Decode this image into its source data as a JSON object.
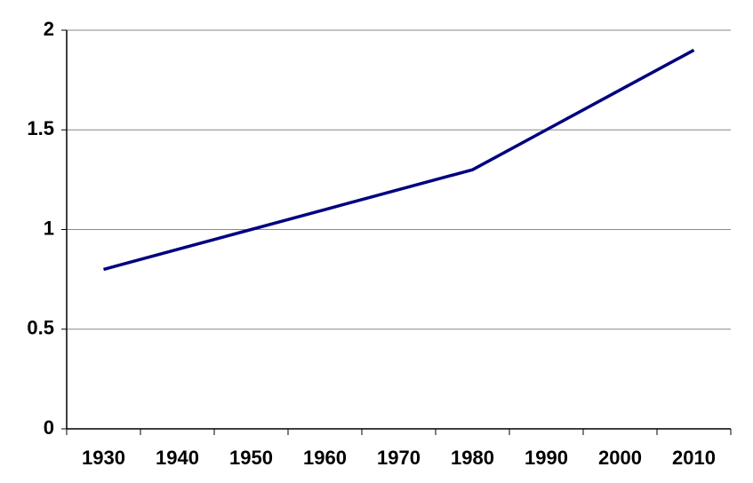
{
  "chart_data": {
    "type": "line",
    "categories": [
      "1930",
      "1940",
      "1950",
      "1960",
      "1970",
      "1980",
      "1990",
      "2000",
      "2010"
    ],
    "series": [
      {
        "color": "#000080",
        "values": [
          0.8,
          0.9,
          1.0,
          1.1,
          1.2,
          1.3,
          1.5,
          1.7,
          1.9
        ]
      }
    ],
    "ylim": [
      0,
      2
    ],
    "yticks": [
      0,
      0.5,
      1,
      1.5,
      2
    ],
    "grid": true
  }
}
